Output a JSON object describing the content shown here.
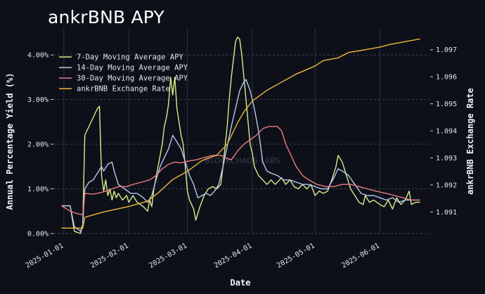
{
  "title": "ankrBNB APY",
  "watermark": "BLOCKCHAOS LABS",
  "chart_data": {
    "type": "line",
    "xlabel": "Date",
    "ylabel_left": "Annual Percentage Yield (%)",
    "ylabel_right": "ankrBNB Exchange Rate",
    "x_start": "2024-12-31",
    "x_end": "2025-06-20",
    "xlim": [
      "2024-12-27",
      "2025-06-25"
    ],
    "ylim_left": [
      0,
      4.6
    ],
    "ylim_right": [
      1.0902,
      1.0978
    ],
    "x_ticks": [
      "2025-01-01",
      "2025-02-01",
      "2025-03-01",
      "2025-04-01",
      "2025-05-01",
      "2025-06-01"
    ],
    "y_ticks_left": [
      {
        "value": 0,
        "label": "0.00%"
      },
      {
        "value": 1,
        "label": "1.00%"
      },
      {
        "value": 2,
        "label": "2.00%"
      },
      {
        "value": 3,
        "label": "3.00%"
      },
      {
        "value": 4,
        "label": "4.00%"
      }
    ],
    "y_ticks_right": [
      {
        "value": 1.091,
        "label": "1.091"
      },
      {
        "value": 1.092,
        "label": "1.092"
      },
      {
        "value": 1.093,
        "label": "1.093"
      },
      {
        "value": 1.094,
        "label": "1.094"
      },
      {
        "value": 1.095,
        "label": "1.095"
      },
      {
        "value": 1.096,
        "label": "1.096"
      },
      {
        "value": 1.097,
        "label": "1.097"
      }
    ],
    "grid": "x-solid-y-dashed",
    "legend_position": "top-left",
    "series": [
      {
        "name": "7-Day Moving Average APY",
        "axis": "left",
        "color": "#d4ee8a",
        "points": [
          [
            "2024-12-31",
            0.62
          ],
          [
            "2025-01-04",
            0.62
          ],
          [
            "2025-01-06",
            0.05
          ],
          [
            "2025-01-09",
            0.0
          ],
          [
            "2025-01-10",
            0.2
          ],
          [
            "2025-01-11",
            2.2
          ],
          [
            "2025-01-12",
            2.3
          ],
          [
            "2025-01-13",
            2.4
          ],
          [
            "2025-01-15",
            2.6
          ],
          [
            "2025-01-17",
            2.8
          ],
          [
            "2025-01-18",
            2.85
          ],
          [
            "2025-01-19",
            1.3
          ],
          [
            "2025-01-20",
            0.95
          ],
          [
            "2025-01-21",
            1.2
          ],
          [
            "2025-01-22",
            0.85
          ],
          [
            "2025-01-23",
            1.0
          ],
          [
            "2025-01-24",
            0.75
          ],
          [
            "2025-01-25",
            0.95
          ],
          [
            "2025-01-26",
            0.8
          ],
          [
            "2025-01-27",
            0.9
          ],
          [
            "2025-01-29",
            0.75
          ],
          [
            "2025-01-31",
            0.85
          ],
          [
            "2025-02-01",
            0.7
          ],
          [
            "2025-02-03",
            0.85
          ],
          [
            "2025-02-05",
            0.7
          ],
          [
            "2025-02-08",
            0.6
          ],
          [
            "2025-02-10",
            0.5
          ],
          [
            "2025-02-11",
            0.75
          ],
          [
            "2025-02-12",
            0.6
          ],
          [
            "2025-02-13",
            1.0
          ],
          [
            "2025-02-15",
            1.5
          ],
          [
            "2025-02-17",
            2.0
          ],
          [
            "2025-02-18",
            2.4
          ],
          [
            "2025-02-19",
            2.6
          ],
          [
            "2025-02-20",
            2.9
          ],
          [
            "2025-02-21",
            3.5
          ],
          [
            "2025-02-22",
            3.1
          ],
          [
            "2025-02-23",
            3.5
          ],
          [
            "2025-02-24",
            2.8
          ],
          [
            "2025-02-25",
            2.5
          ],
          [
            "2025-02-26",
            2.2
          ],
          [
            "2025-02-27",
            2.0
          ],
          [
            "2025-02-28",
            1.5
          ],
          [
            "2025-03-01",
            0.95
          ],
          [
            "2025-03-02",
            0.75
          ],
          [
            "2025-03-04",
            0.55
          ],
          [
            "2025-03-05",
            0.3
          ],
          [
            "2025-03-07",
            0.6
          ],
          [
            "2025-03-09",
            0.85
          ],
          [
            "2025-03-11",
            1.0
          ],
          [
            "2025-03-13",
            1.05
          ],
          [
            "2025-03-15",
            1.0
          ],
          [
            "2025-03-17",
            1.1
          ],
          [
            "2025-03-18",
            1.5
          ],
          [
            "2025-03-20",
            2.4
          ],
          [
            "2025-03-21",
            3.0
          ],
          [
            "2025-03-22",
            3.5
          ],
          [
            "2025-03-23",
            3.9
          ],
          [
            "2025-03-24",
            4.3
          ],
          [
            "2025-03-25",
            4.4
          ],
          [
            "2025-03-26",
            4.35
          ],
          [
            "2025-03-27",
            4.0
          ],
          [
            "2025-03-28",
            3.5
          ],
          [
            "2025-03-29",
            3.0
          ],
          [
            "2025-03-30",
            2.5
          ],
          [
            "2025-03-31",
            2.0
          ],
          [
            "2025-04-01",
            1.8
          ],
          [
            "2025-04-02",
            1.5
          ],
          [
            "2025-04-04",
            1.3
          ],
          [
            "2025-04-06",
            1.2
          ],
          [
            "2025-04-08",
            1.1
          ],
          [
            "2025-04-10",
            1.2
          ],
          [
            "2025-04-12",
            1.1
          ],
          [
            "2025-04-15",
            1.25
          ],
          [
            "2025-04-17",
            1.1
          ],
          [
            "2025-04-19",
            1.2
          ],
          [
            "2025-04-21",
            1.05
          ],
          [
            "2025-04-23",
            1.0
          ],
          [
            "2025-04-25",
            1.1
          ],
          [
            "2025-04-27",
            1.0
          ],
          [
            "2025-04-29",
            1.1
          ],
          [
            "2025-05-01",
            0.85
          ],
          [
            "2025-05-03",
            0.95
          ],
          [
            "2025-05-05",
            0.9
          ],
          [
            "2025-05-07",
            0.95
          ],
          [
            "2025-05-09",
            1.2
          ],
          [
            "2025-05-11",
            1.5
          ],
          [
            "2025-05-12",
            1.75
          ],
          [
            "2025-05-14",
            1.6
          ],
          [
            "2025-05-16",
            1.3
          ],
          [
            "2025-05-18",
            1.0
          ],
          [
            "2025-05-20",
            0.85
          ],
          [
            "2025-05-22",
            0.7
          ],
          [
            "2025-05-24",
            0.65
          ],
          [
            "2025-05-25",
            0.85
          ],
          [
            "2025-05-27",
            0.7
          ],
          [
            "2025-05-29",
            0.75
          ],
          [
            "2025-06-01",
            0.65
          ],
          [
            "2025-06-03",
            0.6
          ],
          [
            "2025-06-05",
            0.75
          ],
          [
            "2025-06-07",
            0.55
          ],
          [
            "2025-06-09",
            0.8
          ],
          [
            "2025-06-11",
            0.65
          ],
          [
            "2025-06-13",
            0.75
          ],
          [
            "2025-06-15",
            0.95
          ],
          [
            "2025-06-16",
            0.65
          ],
          [
            "2025-06-18",
            0.7
          ],
          [
            "2025-06-20",
            0.7
          ]
        ]
      },
      {
        "name": "14-Day Moving Average APY",
        "axis": "left",
        "color": "#b4c8ee",
        "points": [
          [
            "2024-12-31",
            0.62
          ],
          [
            "2025-01-04",
            0.62
          ],
          [
            "2025-01-06",
            0.15
          ],
          [
            "2025-01-09",
            0.05
          ],
          [
            "2025-01-10",
            0.2
          ],
          [
            "2025-01-11",
            1.0
          ],
          [
            "2025-01-13",
            1.15
          ],
          [
            "2025-01-15",
            1.2
          ],
          [
            "2025-01-17",
            1.35
          ],
          [
            "2025-01-19",
            1.5
          ],
          [
            "2025-01-20",
            1.4
          ],
          [
            "2025-01-22",
            1.55
          ],
          [
            "2025-01-24",
            1.6
          ],
          [
            "2025-01-25",
            1.4
          ],
          [
            "2025-01-27",
            1.1
          ],
          [
            "2025-01-30",
            1.0
          ],
          [
            "2025-02-02",
            0.9
          ],
          [
            "2025-02-05",
            0.9
          ],
          [
            "2025-02-08",
            0.8
          ],
          [
            "2025-02-10",
            0.7
          ],
          [
            "2025-02-12",
            0.85
          ],
          [
            "2025-02-14",
            1.2
          ],
          [
            "2025-02-16",
            1.5
          ],
          [
            "2025-02-18",
            1.7
          ],
          [
            "2025-02-20",
            1.9
          ],
          [
            "2025-02-22",
            2.2
          ],
          [
            "2025-02-24",
            2.05
          ],
          [
            "2025-02-26",
            1.9
          ],
          [
            "2025-02-28",
            1.6
          ],
          [
            "2025-03-02",
            1.3
          ],
          [
            "2025-03-04",
            1.1
          ],
          [
            "2025-03-06",
            0.8
          ],
          [
            "2025-03-08",
            0.85
          ],
          [
            "2025-03-10",
            0.9
          ],
          [
            "2025-03-12",
            0.85
          ],
          [
            "2025-03-14",
            0.95
          ],
          [
            "2025-03-16",
            1.1
          ],
          [
            "2025-03-18",
            1.5
          ],
          [
            "2025-03-20",
            1.95
          ],
          [
            "2025-03-22",
            2.4
          ],
          [
            "2025-03-24",
            2.8
          ],
          [
            "2025-03-26",
            3.2
          ],
          [
            "2025-03-28",
            3.4
          ],
          [
            "2025-03-29",
            3.45
          ],
          [
            "2025-03-31",
            3.2
          ],
          [
            "2025-04-02",
            2.8
          ],
          [
            "2025-04-04",
            2.3
          ],
          [
            "2025-04-06",
            1.6
          ],
          [
            "2025-04-08",
            1.4
          ],
          [
            "2025-04-10",
            1.35
          ],
          [
            "2025-04-13",
            1.3
          ],
          [
            "2025-04-16",
            1.2
          ],
          [
            "2025-04-19",
            1.2
          ],
          [
            "2025-04-22",
            1.15
          ],
          [
            "2025-04-25",
            1.1
          ],
          [
            "2025-04-28",
            1.1
          ],
          [
            "2025-05-01",
            1.05
          ],
          [
            "2025-05-04",
            1.0
          ],
          [
            "2025-05-07",
            1.0
          ],
          [
            "2025-05-10",
            1.25
          ],
          [
            "2025-05-12",
            1.45
          ],
          [
            "2025-05-14",
            1.4
          ],
          [
            "2025-05-17",
            1.3
          ],
          [
            "2025-05-20",
            1.1
          ],
          [
            "2025-05-23",
            0.9
          ],
          [
            "2025-05-26",
            0.85
          ],
          [
            "2025-05-29",
            0.85
          ],
          [
            "2025-06-01",
            0.8
          ],
          [
            "2025-06-04",
            0.75
          ],
          [
            "2025-06-07",
            0.8
          ],
          [
            "2025-06-10",
            0.7
          ],
          [
            "2025-06-13",
            0.75
          ],
          [
            "2025-06-16",
            0.75
          ],
          [
            "2025-06-20",
            0.75
          ]
        ]
      },
      {
        "name": "30-Day Moving Average APY",
        "axis": "left",
        "color": "#ee7a82",
        "points": [
          [
            "2024-12-31",
            0.62
          ],
          [
            "2025-01-04",
            0.5
          ],
          [
            "2025-01-07",
            0.45
          ],
          [
            "2025-01-10",
            0.42
          ],
          [
            "2025-01-11",
            0.9
          ],
          [
            "2025-01-15",
            0.88
          ],
          [
            "2025-01-19",
            0.92
          ],
          [
            "2025-01-23",
            0.98
          ],
          [
            "2025-01-27",
            1.05
          ],
          [
            "2025-01-31",
            1.05
          ],
          [
            "2025-02-03",
            1.1
          ],
          [
            "2025-02-07",
            1.15
          ],
          [
            "2025-02-11",
            1.2
          ],
          [
            "2025-02-14",
            1.3
          ],
          [
            "2025-02-17",
            1.45
          ],
          [
            "2025-02-20",
            1.55
          ],
          [
            "2025-02-23",
            1.6
          ],
          [
            "2025-02-26",
            1.58
          ],
          [
            "2025-03-01",
            1.62
          ],
          [
            "2025-03-05",
            1.65
          ],
          [
            "2025-03-09",
            1.7
          ],
          [
            "2025-03-13",
            1.75
          ],
          [
            "2025-03-17",
            1.75
          ],
          [
            "2025-03-19",
            1.7
          ],
          [
            "2025-03-22",
            1.65
          ],
          [
            "2025-03-25",
            1.85
          ],
          [
            "2025-03-28",
            2.0
          ],
          [
            "2025-03-31",
            2.1
          ],
          [
            "2025-04-03",
            2.2
          ],
          [
            "2025-04-06",
            2.35
          ],
          [
            "2025-04-09",
            2.4
          ],
          [
            "2025-04-13",
            2.4
          ],
          [
            "2025-04-15",
            2.3
          ],
          [
            "2025-04-17",
            2.0
          ],
          [
            "2025-04-19",
            1.8
          ],
          [
            "2025-04-22",
            1.5
          ],
          [
            "2025-04-25",
            1.3
          ],
          [
            "2025-04-28",
            1.2
          ],
          [
            "2025-05-02",
            1.1
          ],
          [
            "2025-05-06",
            1.05
          ],
          [
            "2025-05-10",
            1.05
          ],
          [
            "2025-05-14",
            1.1
          ],
          [
            "2025-05-18",
            1.1
          ],
          [
            "2025-05-22",
            1.05
          ],
          [
            "2025-05-26",
            1.0
          ],
          [
            "2025-05-30",
            0.95
          ],
          [
            "2025-06-04",
            0.9
          ],
          [
            "2025-06-08",
            0.85
          ],
          [
            "2025-06-12",
            0.8
          ],
          [
            "2025-06-16",
            0.75
          ],
          [
            "2025-06-20",
            0.75
          ]
        ]
      },
      {
        "name": "ankrBNB Exchange Rate",
        "axis": "right",
        "color": "#f0b63c",
        "points": [
          [
            "2024-12-31",
            1.0904
          ],
          [
            "2025-01-10",
            1.0904
          ],
          [
            "2025-01-11",
            1.0908
          ],
          [
            "2025-01-20",
            1.091
          ],
          [
            "2025-02-01",
            1.0912
          ],
          [
            "2025-02-10",
            1.0914
          ],
          [
            "2025-02-15",
            1.0917
          ],
          [
            "2025-02-22",
            1.0922
          ],
          [
            "2025-03-01",
            1.0925
          ],
          [
            "2025-03-08",
            1.0929
          ],
          [
            "2025-03-15",
            1.0931
          ],
          [
            "2025-03-20",
            1.0935
          ],
          [
            "2025-03-25",
            1.0943
          ],
          [
            "2025-03-28",
            1.0947
          ],
          [
            "2025-04-01",
            1.0951
          ],
          [
            "2025-04-08",
            1.0955
          ],
          [
            "2025-04-15",
            1.0958
          ],
          [
            "2025-04-22",
            1.0961
          ],
          [
            "2025-05-01",
            1.0964
          ],
          [
            "2025-05-05",
            1.0966
          ],
          [
            "2025-05-12",
            1.0967
          ],
          [
            "2025-05-17",
            1.0969
          ],
          [
            "2025-05-25",
            1.097
          ],
          [
            "2025-06-01",
            1.0971
          ],
          [
            "2025-06-06",
            1.0972
          ],
          [
            "2025-06-13",
            1.0973
          ],
          [
            "2025-06-20",
            1.0974
          ]
        ]
      }
    ]
  }
}
